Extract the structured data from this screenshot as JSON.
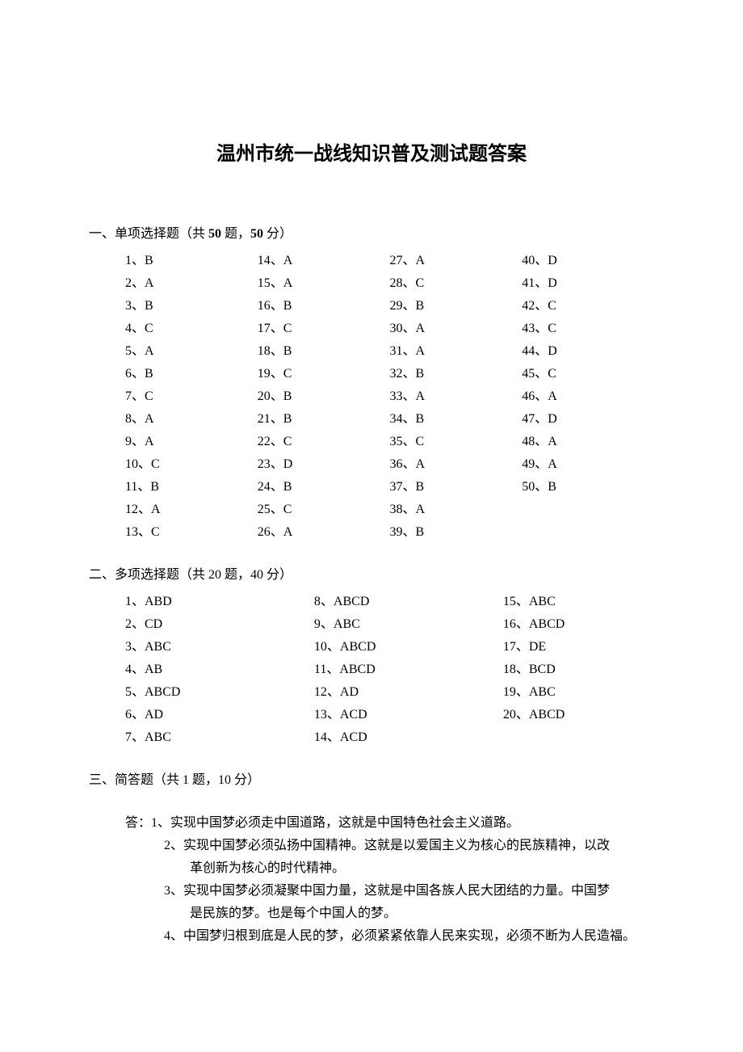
{
  "title": "温州市统一战线知识普及测试题答案",
  "section1": {
    "header_prefix": "一、单项选择题（共 ",
    "header_count": "50",
    "header_mid": " 题，",
    "header_points": "50",
    "header_suffix": " 分）",
    "columns": [
      [
        {
          "n": "1",
          "a": "B"
        },
        {
          "n": "2",
          "a": "A"
        },
        {
          "n": "3",
          "a": "B"
        },
        {
          "n": "4",
          "a": "C"
        },
        {
          "n": "5",
          "a": "A"
        },
        {
          "n": "6",
          "a": "B"
        },
        {
          "n": "7",
          "a": "C"
        },
        {
          "n": "8",
          "a": "A"
        },
        {
          "n": "9",
          "a": "A"
        },
        {
          "n": "10",
          "a": "C"
        },
        {
          "n": "11",
          "a": "B"
        },
        {
          "n": "12",
          "a": "A"
        },
        {
          "n": "13",
          "a": "C"
        }
      ],
      [
        {
          "n": "14",
          "a": "A"
        },
        {
          "n": "15",
          "a": "A"
        },
        {
          "n": "16",
          "a": "B"
        },
        {
          "n": "17",
          "a": "C"
        },
        {
          "n": "18",
          "a": "B"
        },
        {
          "n": "19",
          "a": "C"
        },
        {
          "n": "20",
          "a": "B"
        },
        {
          "n": "21",
          "a": "B"
        },
        {
          "n": "22",
          "a": "C"
        },
        {
          "n": "23",
          "a": "D"
        },
        {
          "n": "24",
          "a": "B"
        },
        {
          "n": "25",
          "a": "C"
        },
        {
          "n": "26",
          "a": "A"
        }
      ],
      [
        {
          "n": "27",
          "a": "A"
        },
        {
          "n": "28",
          "a": "C"
        },
        {
          "n": "29",
          "a": "B"
        },
        {
          "n": "30",
          "a": "A"
        },
        {
          "n": "31",
          "a": "A"
        },
        {
          "n": "32",
          "a": "B"
        },
        {
          "n": "33",
          "a": "A"
        },
        {
          "n": "34",
          "a": "B"
        },
        {
          "n": "35",
          "a": "C"
        },
        {
          "n": "36",
          "a": "A"
        },
        {
          "n": "37",
          "a": "B"
        },
        {
          "n": "38",
          "a": "A"
        },
        {
          "n": "39",
          "a": "B"
        }
      ],
      [
        {
          "n": "40",
          "a": "D"
        },
        {
          "n": "41",
          "a": "D"
        },
        {
          "n": "42",
          "a": "C"
        },
        {
          "n": "43",
          "a": "C"
        },
        {
          "n": "44",
          "a": "D"
        },
        {
          "n": "45",
          "a": "C"
        },
        {
          "n": "46",
          "a": "A"
        },
        {
          "n": "47",
          "a": "D"
        },
        {
          "n": "48",
          "a": "A"
        },
        {
          "n": "49",
          "a": "A"
        },
        {
          "n": "50",
          "a": "B"
        }
      ]
    ]
  },
  "section2": {
    "header": "二、多项选择题（共 20 题，40 分）",
    "columns": [
      [
        {
          "n": "1",
          "a": "ABD"
        },
        {
          "n": "2",
          "a": "CD"
        },
        {
          "n": "3",
          "a": "ABC"
        },
        {
          "n": "4",
          "a": "AB"
        },
        {
          "n": "5",
          "a": "ABCD"
        },
        {
          "n": "6",
          "a": "AD"
        },
        {
          "n": "7",
          "a": "ABC"
        }
      ],
      [
        {
          "n": "8",
          "a": "ABCD"
        },
        {
          "n": "9",
          "a": "ABC"
        },
        {
          "n": "10",
          "a": "ABCD"
        },
        {
          "n": "11",
          "a": "ABCD"
        },
        {
          "n": "12",
          "a": "AD"
        },
        {
          "n": "13",
          "a": "ACD"
        },
        {
          "n": "14",
          "a": "ACD"
        }
      ],
      [
        {
          "n": "15",
          "a": "ABC"
        },
        {
          "n": "16",
          "a": "ABCD"
        },
        {
          "n": "17",
          "a": "DE"
        },
        {
          "n": "18",
          "a": "BCD"
        },
        {
          "n": "19",
          "a": "ABC"
        },
        {
          "n": "20",
          "a": "ABCD"
        }
      ]
    ]
  },
  "section3": {
    "header": "三、简答题（共 1 题，10 分）",
    "answer_label": "答：",
    "points": [
      {
        "lines": [
          "1、实现中国梦必须走中国道路，这就是中国特色社会主义道路。"
        ]
      },
      {
        "lines": [
          "2、实现中国梦必须弘扬中国精神。这就是以爱国主义为核心的民族精神，以改",
          "革创新为核心的时代精神。"
        ]
      },
      {
        "lines": [
          "3、实现中国梦必须凝聚中国力量，这就是中国各族人民大团结的力量。中国梦",
          "是民族的梦。也是每个中国人的梦。"
        ]
      },
      {
        "lines": [
          "4、中国梦归根到底是人民的梦，必须紧紧依靠人民来实现，必须不断为人民造福。"
        ]
      }
    ]
  },
  "style": {
    "background_color": "#ffffff",
    "text_color": "#000000",
    "title_fontsize": 24,
    "body_fontsize": 16,
    "line_height": 28
  }
}
